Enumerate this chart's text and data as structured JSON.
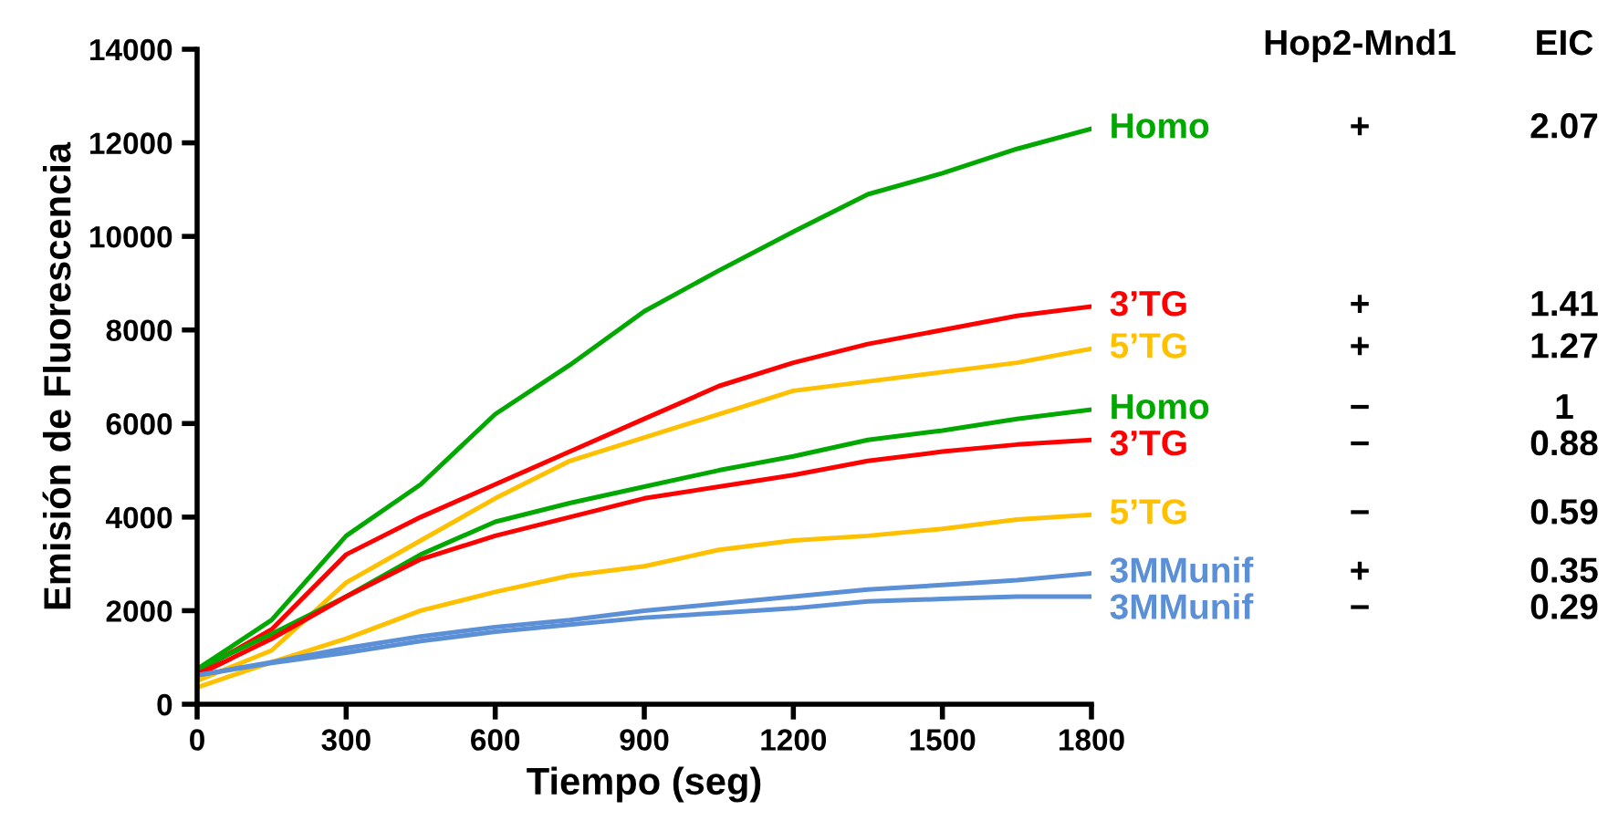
{
  "chart_data": {
    "type": "line",
    "xlabel": "Tiempo (seg)",
    "ylabel": "Emisión de Fluorescencia",
    "x": [
      0,
      150,
      300,
      450,
      600,
      750,
      900,
      1050,
      1200,
      1350,
      1500,
      1650,
      1800
    ],
    "series": [
      {
        "name": "Homo",
        "color": "#00a800",
        "values": [
          750,
          1800,
          3600,
          4700,
          6200,
          7250,
          8400,
          9270,
          10100,
          10900,
          11350,
          11870,
          12300
        ]
      },
      {
        "name": "3’TG",
        "color": "#ff0000",
        "values": [
          690,
          1600,
          3200,
          4000,
          4700,
          5400,
          6100,
          6800,
          7300,
          7700,
          8000,
          8300,
          8500
        ]
      },
      {
        "name": "5’TG",
        "color": "#ffc000",
        "values": [
          500,
          1150,
          2600,
          3500,
          4400,
          5200,
          5700,
          6200,
          6700,
          6900,
          7100,
          7300,
          7600
        ]
      },
      {
        "name": "Homo",
        "color": "#00a800",
        "values": [
          750,
          1500,
          2300,
          3200,
          3900,
          4300,
          4650,
          5000,
          5300,
          5650,
          5850,
          6100,
          6300
        ]
      },
      {
        "name": "3’TG",
        "color": "#ff0000",
        "values": [
          620,
          1400,
          2300,
          3100,
          3600,
          4000,
          4400,
          4650,
          4900,
          5200,
          5400,
          5550,
          5650
        ]
      },
      {
        "name": "5’TG",
        "color": "#ffc000",
        "values": [
          360,
          900,
          1400,
          2000,
          2400,
          2750,
          2950,
          3300,
          3500,
          3600,
          3750,
          3950,
          4050
        ]
      },
      {
        "name": "3MMunif",
        "color": "#5b8fd6",
        "values": [
          620,
          900,
          1200,
          1450,
          1650,
          1800,
          2000,
          2150,
          2300,
          2450,
          2550,
          2650,
          2800
        ]
      },
      {
        "name": "3MMunif",
        "color": "#5b8fd6",
        "values": [
          620,
          880,
          1100,
          1350,
          1550,
          1700,
          1850,
          1950,
          2050,
          2200,
          2250,
          2300,
          2300
        ]
      }
    ],
    "annotations": [
      "Hop2-Mnd1",
      "EIC",
      "+",
      "2.07",
      "+",
      "1.41",
      "+",
      "1.27",
      "−",
      "1",
      "−",
      "0.88",
      "−",
      "0.59",
      "+",
      "0.35",
      "−",
      "0.29"
    ],
    "xlim": [
      0,
      1800
    ],
    "xticks": [
      0,
      300,
      600,
      900,
      1200,
      1500,
      1800
    ],
    "ylim": [
      0,
      14000
    ],
    "yticks": [
      0,
      2000,
      4000,
      6000,
      8000,
      10000,
      12000,
      14000
    ],
    "grid": false,
    "legend": false,
    "marker": "none",
    "line_style": "solid"
  }
}
